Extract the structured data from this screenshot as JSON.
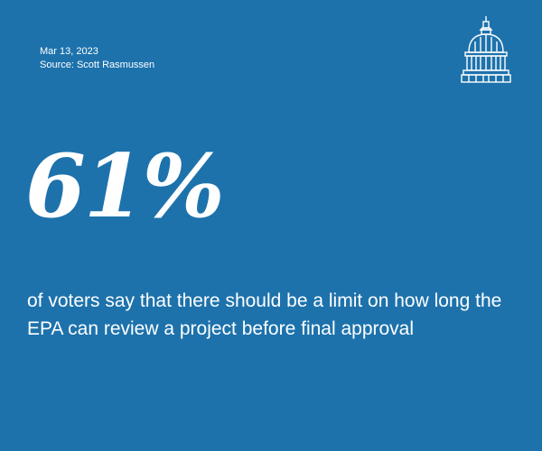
{
  "colors": {
    "background": "#1d72ac",
    "text": "#ffffff"
  },
  "header": {
    "date": "Mar 13, 2023",
    "source": "Source: Scott Rasmussen"
  },
  "logo": {
    "icon": "capitol-dome-icon"
  },
  "stat": {
    "value": "61%"
  },
  "description": {
    "text": "of voters say that there should be a limit on how long the EPA can review a project before final approval"
  }
}
